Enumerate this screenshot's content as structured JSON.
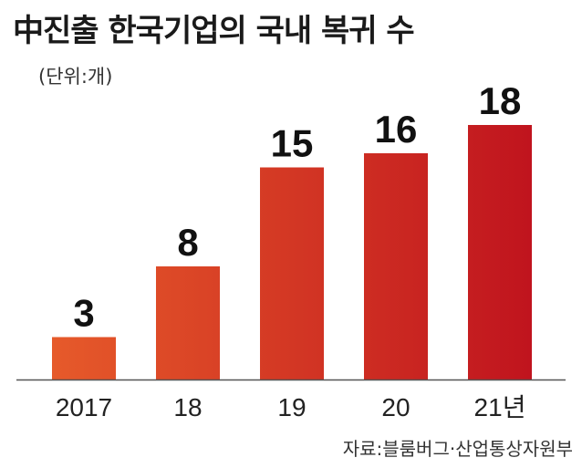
{
  "header": {
    "title": "中진출 한국기업의 국내 복귀 수",
    "unit": "(단위:개)"
  },
  "footer": {
    "source": "자료:블룸버그·산업통상자원부"
  },
  "colors": {
    "bar_start": "#e65a2a",
    "bar_end": "#c0141e",
    "axis": "#555555"
  },
  "chart_data": {
    "type": "bar",
    "categories": [
      "2017",
      "18",
      "19",
      "20",
      "21년"
    ],
    "values": [
      3,
      8,
      15,
      16,
      18
    ],
    "title": "중진출 한국기업의 국내 복귀 수",
    "unit": "(단위:개)",
    "xlabel": "",
    "ylabel": "",
    "ylim": [
      0,
      18
    ],
    "grid": false,
    "legend": "none"
  }
}
